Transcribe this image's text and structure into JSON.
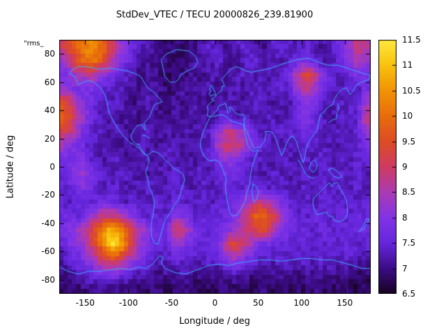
{
  "figure": {
    "title": "StdDev_VTEC / TECU 20000826_239.81900",
    "corner_label": "\"rms_",
    "x_axis": {
      "label": "Longitude / deg",
      "range": [
        -180,
        180
      ],
      "ticks": [
        -150,
        -100,
        -50,
        0,
        50,
        100,
        150
      ]
    },
    "y_axis": {
      "label": "Latitude / deg",
      "range": [
        -90,
        90
      ],
      "ticks": [
        80,
        60,
        40,
        20,
        0,
        -20,
        -40,
        -60,
        -80
      ]
    },
    "colorbar": {
      "range": [
        6.5,
        11.5
      ],
      "ticks": [
        6.5,
        7,
        7.5,
        8,
        8.5,
        9,
        9.5,
        10,
        10.5,
        11,
        11.5
      ]
    }
  },
  "chart_data": {
    "type": "heatmap",
    "title": "StdDev_VTEC / TECU 20000826_239.81900",
    "xlabel": "Longitude / deg",
    "ylabel": "Latitude / deg",
    "legend": "\"rms_",
    "x_range": [
      -180,
      180
    ],
    "y_range": [
      -90,
      90
    ],
    "value_range": [
      6.5,
      11.5
    ],
    "value_units": "TECU",
    "coastline_color": "#3fa8ff",
    "palette": [
      {
        "t": 0.0,
        "color": "#16021f"
      },
      {
        "t": 0.1,
        "color": "#3c0b86"
      },
      {
        "t": 0.2,
        "color": "#6526dd"
      },
      {
        "t": 0.3,
        "color": "#8133e6"
      },
      {
        "t": 0.4,
        "color": "#ab3ab4"
      },
      {
        "t": 0.5,
        "color": "#cf3a64"
      },
      {
        "t": 0.6,
        "color": "#dd4c24"
      },
      {
        "t": 0.7,
        "color": "#e86c0c"
      },
      {
        "t": 0.8,
        "color": "#f19304"
      },
      {
        "t": 0.9,
        "color": "#f9c10c"
      },
      {
        "t": 1.0,
        "color": "#ffe93e"
      }
    ],
    "grid": {
      "note": "Estimated StdDev VTEC values (TECU), 18 rows (lat 90..-90, north to south) x 36 cols (lon -180..180), 10 deg cells",
      "lon_start": -180,
      "lon_step": 10,
      "lat_start": 90,
      "lat_step": -10,
      "values": [
        [
          9.0,
          9.6,
          10.0,
          10.4,
          10.2,
          9.6,
          8.8,
          8.0,
          7.6,
          7.3,
          7.2,
          7.0,
          6.9,
          7.1,
          6.8,
          7.0,
          7.2,
          7.4,
          7.3,
          7.1,
          7.3,
          7.5,
          7.2,
          7.0,
          7.3,
          7.6,
          7.4,
          7.2,
          7.5,
          7.3,
          7.1,
          7.4,
          7.8,
          8.2,
          9.0,
          8.6
        ],
        [
          8.2,
          9.0,
          9.8,
          10.2,
          10.0,
          9.2,
          8.4,
          7.8,
          7.5,
          7.2,
          7.0,
          7.2,
          6.9,
          6.8,
          7.0,
          7.1,
          7.3,
          7.2,
          7.4,
          7.2,
          7.0,
          7.3,
          7.5,
          7.2,
          7.4,
          7.1,
          7.3,
          7.6,
          7.8,
          7.4,
          7.2,
          7.3,
          7.6,
          8.0,
          8.6,
          8.2
        ],
        [
          7.8,
          8.2,
          8.6,
          8.8,
          8.4,
          8.0,
          7.6,
          7.4,
          7.2,
          7.0,
          7.2,
          6.9,
          6.8,
          7.0,
          6.9,
          7.1,
          7.0,
          7.2,
          7.3,
          7.1,
          7.2,
          7.4,
          7.2,
          7.3,
          7.1,
          7.4,
          7.6,
          8.6,
          9.4,
          9.0,
          7.9,
          7.5,
          7.3,
          7.6,
          7.9,
          7.7
        ],
        [
          8.2,
          8.0,
          7.8,
          7.9,
          7.6,
          7.4,
          7.2,
          7.3,
          7.1,
          7.0,
          7.2,
          7.1,
          6.9,
          7.0,
          7.2,
          7.1,
          7.3,
          7.2,
          7.0,
          7.2,
          7.3,
          7.1,
          7.4,
          7.2,
          7.3,
          7.5,
          7.4,
          8.2,
          8.8,
          8.4,
          7.7,
          7.4,
          7.2,
          7.5,
          7.3,
          7.8
        ],
        [
          9.4,
          9.0,
          8.2,
          7.8,
          7.5,
          7.3,
          7.4,
          7.2,
          7.0,
          7.1,
          7.3,
          7.0,
          6.9,
          7.1,
          7.0,
          7.2,
          7.1,
          7.0,
          7.2,
          7.3,
          7.1,
          7.2,
          7.4,
          7.3,
          7.1,
          7.3,
          7.2,
          7.6,
          8.2,
          7.8,
          7.4,
          7.2,
          7.4,
          7.3,
          7.5,
          8.4
        ],
        [
          9.8,
          9.2,
          8.4,
          7.8,
          7.4,
          7.2,
          7.3,
          7.1,
          7.2,
          7.0,
          7.2,
          7.1,
          7.0,
          7.2,
          7.1,
          7.3,
          7.2,
          7.1,
          7.3,
          7.4,
          7.2,
          7.3,
          7.1,
          7.2,
          7.4,
          7.2,
          7.3,
          7.8,
          8.0,
          7.6,
          7.3,
          7.2,
          7.3,
          7.5,
          7.4,
          8.8
        ],
        [
          9.2,
          8.8,
          8.0,
          7.6,
          7.3,
          7.2,
          7.4,
          7.1,
          7.0,
          7.2,
          7.3,
          7.1,
          7.2,
          7.0,
          7.3,
          7.1,
          7.2,
          7.4,
          8.2,
          8.8,
          8.6,
          8.2,
          7.6,
          7.3,
          7.2,
          7.4,
          7.3,
          7.5,
          7.8,
          7.4,
          7.3,
          7.2,
          7.4,
          7.3,
          7.6,
          8.2
        ],
        [
          8.4,
          8.0,
          7.8,
          7.4,
          7.2,
          7.3,
          7.1,
          7.2,
          7.0,
          7.3,
          7.2,
          7.1,
          7.3,
          7.2,
          7.1,
          7.3,
          7.2,
          7.5,
          8.6,
          9.0,
          8.8,
          8.4,
          7.8,
          7.4,
          7.3,
          7.2,
          7.4,
          7.3,
          7.5,
          7.3,
          7.4,
          7.2,
          7.3,
          7.5,
          7.4,
          7.8
        ],
        [
          7.8,
          7.6,
          8.0,
          7.4,
          7.3,
          7.2,
          7.4,
          7.1,
          7.2,
          7.3,
          7.1,
          7.2,
          7.4,
          7.2,
          7.3,
          7.1,
          7.2,
          7.4,
          7.8,
          8.2,
          8.0,
          7.6,
          7.4,
          7.3,
          7.2,
          7.4,
          7.3,
          7.2,
          7.4,
          7.3,
          7.5,
          7.2,
          7.4,
          7.3,
          7.5,
          7.4
        ],
        [
          7.6,
          8.0,
          8.4,
          8.0,
          7.5,
          7.3,
          7.2,
          7.4,
          7.2,
          7.3,
          7.1,
          7.3,
          7.2,
          7.4,
          7.2,
          7.3,
          7.4,
          7.2,
          7.5,
          7.8,
          7.6,
          7.4,
          7.3,
          7.2,
          7.4,
          7.3,
          7.2,
          7.4,
          7.3,
          7.2,
          7.4,
          7.3,
          7.5,
          7.2,
          7.4,
          7.3
        ],
        [
          7.4,
          7.6,
          8.0,
          7.8,
          7.4,
          7.3,
          7.5,
          7.2,
          7.3,
          7.2,
          7.4,
          7.2,
          7.3,
          7.5,
          7.3,
          7.2,
          7.4,
          7.3,
          7.4,
          7.6,
          7.4,
          7.5,
          7.6,
          7.4,
          7.3,
          7.5,
          7.3,
          7.2,
          7.4,
          7.3,
          7.5,
          7.3,
          7.4,
          7.2,
          7.5,
          7.3
        ],
        [
          7.5,
          7.3,
          7.6,
          7.4,
          7.6,
          7.8,
          7.5,
          7.3,
          7.4,
          7.2,
          7.3,
          7.5,
          7.3,
          7.6,
          7.4,
          7.3,
          7.5,
          7.3,
          7.4,
          7.5,
          7.7,
          8.2,
          8.6,
          8.8,
          8.4,
          7.9,
          7.5,
          7.3,
          7.4,
          7.3,
          7.5,
          7.4,
          7.3,
          7.5,
          7.3,
          7.4
        ],
        [
          7.6,
          7.8,
          7.5,
          8.0,
          8.6,
          9.0,
          8.8,
          8.4,
          8.0,
          7.6,
          7.4,
          7.5,
          7.3,
          8.2,
          7.8,
          7.5,
          7.4,
          7.6,
          7.5,
          7.7,
          8.0,
          8.8,
          9.6,
          10.0,
          9.4,
          8.6,
          7.9,
          7.5,
          7.4,
          7.6,
          7.5,
          7.4,
          7.6,
          7.4,
          7.5,
          7.6
        ],
        [
          7.8,
          8.0,
          8.4,
          9.0,
          9.8,
          10.6,
          10.8,
          10.0,
          9.2,
          8.4,
          7.9,
          7.6,
          7.8,
          9.2,
          8.6,
          7.9,
          7.6,
          7.5,
          7.7,
          8.0,
          8.4,
          8.8,
          9.2,
          9.4,
          8.8,
          8.2,
          7.7,
          7.5,
          7.6,
          7.4,
          7.6,
          7.5,
          7.4,
          7.6,
          7.5,
          7.7
        ],
        [
          7.6,
          7.9,
          8.2,
          8.8,
          9.6,
          11.0,
          11.4,
          10.4,
          9.0,
          8.2,
          7.8,
          7.6,
          7.5,
          8.4,
          8.0,
          7.7,
          7.5,
          7.6,
          7.8,
          9.0,
          9.4,
          8.8,
          8.2,
          7.9,
          7.7,
          7.6,
          7.5,
          7.4,
          7.6,
          7.5,
          7.4,
          7.6,
          7.5,
          7.6,
          7.4,
          7.5
        ],
        [
          7.3,
          7.5,
          7.8,
          8.2,
          8.8,
          9.4,
          9.6,
          9.0,
          8.4,
          7.9,
          7.6,
          7.4,
          7.3,
          7.6,
          7.5,
          7.4,
          7.3,
          7.5,
          7.6,
          8.2,
          8.4,
          7.9,
          7.6,
          7.4,
          7.3,
          7.5,
          7.4,
          7.3,
          7.4,
          7.3,
          7.5,
          7.4,
          7.3,
          7.4,
          7.2,
          7.3
        ],
        [
          7.0,
          7.2,
          7.4,
          7.6,
          7.8,
          8.0,
          8.2,
          7.8,
          7.5,
          7.3,
          7.1,
          7.0,
          7.2,
          7.1,
          7.3,
          7.0,
          7.1,
          7.2,
          7.0,
          7.3,
          7.4,
          7.2,
          7.0,
          7.1,
          7.0,
          7.2,
          7.1,
          7.0,
          7.2,
          7.0,
          7.1,
          7.2,
          7.0,
          7.1,
          6.9,
          7.0
        ],
        [
          6.8,
          6.9,
          7.0,
          7.1,
          7.2,
          7.0,
          7.1,
          6.9,
          7.0,
          6.8,
          6.9,
          7.0,
          6.8,
          6.9,
          7.0,
          6.8,
          6.9,
          6.8,
          6.9,
          7.0,
          6.8,
          6.9,
          6.8,
          7.0,
          6.8,
          6.9,
          6.8,
          6.9,
          6.8,
          7.0,
          6.9,
          6.8,
          6.9,
          6.8,
          6.7,
          6.8
        ]
      ]
    }
  }
}
